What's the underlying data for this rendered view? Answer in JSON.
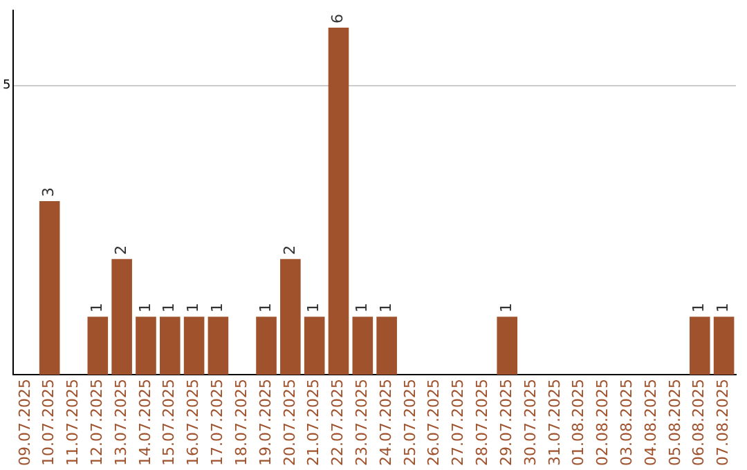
{
  "chart_data": {
    "type": "bar",
    "categories": [
      "09.07.2025",
      "10.07.2025",
      "11.07.2025",
      "12.07.2025",
      "13.07.2025",
      "14.07.2025",
      "15.07.2025",
      "16.07.2025",
      "17.07.2025",
      "18.07.2025",
      "19.07.2025",
      "20.07.2025",
      "21.07.2025",
      "22.07.2025",
      "23.07.2025",
      "24.07.2025",
      "25.07.2025",
      "26.07.2025",
      "27.07.2025",
      "28.07.2025",
      "29.07.2025",
      "30.07.2025",
      "31.07.2025",
      "01.08.2025",
      "02.08.2025",
      "03.08.2025",
      "04.08.2025",
      "05.08.2025",
      "06.08.2025",
      "07.08.2025"
    ],
    "values": [
      0,
      3,
      0,
      1,
      2,
      1,
      1,
      1,
      1,
      0,
      1,
      2,
      1,
      6,
      1,
      1,
      0,
      0,
      0,
      0,
      1,
      0,
      0,
      0,
      0,
      0,
      0,
      0,
      1,
      1
    ],
    "value_labels": [
      null,
      "3",
      null,
      "1",
      "2",
      "1",
      "1",
      "1",
      "1",
      null,
      "1",
      "2",
      "1",
      "6",
      "1",
      "1",
      null,
      null,
      null,
      null,
      "1",
      null,
      null,
      null,
      null,
      null,
      null,
      null,
      "1",
      "1"
    ],
    "color": "#a0522d",
    "ylim": [
      0,
      6.3
    ],
    "yticks": [
      5
    ],
    "grid": "y",
    "legend": false
  }
}
